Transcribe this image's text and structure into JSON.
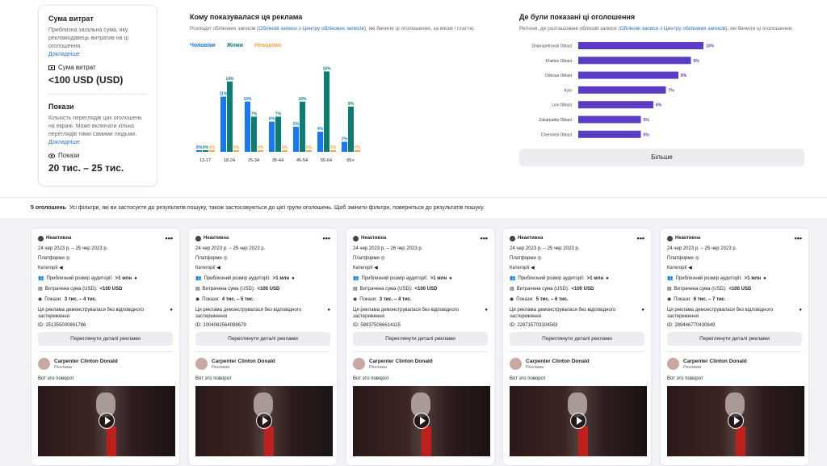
{
  "spend": {
    "title": "Сума витрат",
    "desc": "Приблизна загальна сума, яку рекламодавець витратив на ці оголошення.",
    "link": "Докладніше",
    "label": "Сума витрат",
    "value": "<100 USD (USD)"
  },
  "impressions": {
    "title": "Покази",
    "desc": "Кількість переглядів цих оголошень на екрані. Може включати кілька переглядів тими самими людьми.",
    "link": "Докладніше",
    "label": "Покази",
    "value": "20 тис. – 25 тис."
  },
  "audience": {
    "title": "Кому показувалася ця реклама",
    "sub_before": "Розподіл облікових записів (",
    "sub_link": "Облікові записи з Центру облікових записів",
    "sub_after": "), які бачили ці оголошення, за віком і статтю.",
    "legend": [
      {
        "name": "Чоловіки",
        "color": "#1877f2"
      },
      {
        "name": "Жінки",
        "color": "#0a7e73"
      },
      {
        "name": "Невідомо",
        "color": "#f7a54a"
      }
    ]
  },
  "chart_data": {
    "type": "bar",
    "categories": [
      "13-17",
      "18-24",
      "25-34",
      "35-44",
      "45-54",
      "55-64",
      "65+"
    ],
    "series": [
      {
        "name": "Чоловіки",
        "values": [
          0,
          11,
          10,
          6,
          5,
          4,
          2
        ]
      },
      {
        "name": "Жінки",
        "values": [
          0,
          14,
          7,
          7,
          10,
          16,
          9
        ]
      },
      {
        "name": "Невідомо",
        "values": [
          0,
          0,
          0,
          0,
          0,
          0,
          0
        ]
      }
    ],
    "labels": [
      [
        "0%",
        "11%",
        "10%",
        "6%",
        "5%",
        "4%",
        "2%"
      ],
      [
        "0%",
        "14%",
        "7%",
        "7%",
        "10%",
        "16%",
        "9%"
      ],
      [
        "0%",
        "0%",
        "0%",
        "0%",
        "0%",
        "0%",
        "0%"
      ]
    ],
    "ylim": [
      0,
      18
    ]
  },
  "regions": {
    "title": "Де були показані ці оголошення",
    "sub_before": "Регіони, де розташовані облікові записи (",
    "sub_link": "Облікові записи з Центру облікових записів",
    "sub_after": "), які бачили ці оголошення.",
    "items": [
      {
        "name": "Dnipropetrovsk Oblast",
        "value": 10,
        "label": "10%"
      },
      {
        "name": "Kharkiv Oblast",
        "value": 9,
        "label": "9%"
      },
      {
        "name": "Odessa Oblast",
        "value": 8,
        "label": "8%"
      },
      {
        "name": "Kyiv",
        "value": 7,
        "label": "7%"
      },
      {
        "name": "Lviv Oblast",
        "value": 6,
        "label": "6%"
      },
      {
        "name": "Zakarpattia Oblast",
        "value": 5,
        "label": "5%"
      },
      {
        "name": "Chernivtsi Oblast",
        "value": 5,
        "label": "5%"
      }
    ],
    "bar_color": "#5b3cc4",
    "more": "Більше"
  },
  "summary": {
    "count": "5 оголошень",
    "text": "Усі фільтри, які ви застосуєте до результатів пошуку, також застосовуються до цієї групи оголошень. Щоб змінити фільтри, поверніться до результатів пошуку."
  },
  "ads": [
    {
      "status": "Неактивна",
      "dates": "24 чер 2023 р. – 25 чер 2023 р.",
      "platforms": "Платформи",
      "categories": "Категорії",
      "audience_label": "Приблизний розмір аудиторії:",
      "audience": ">1 млн",
      "spend_label": "Витрачена сума (USD):",
      "spend": "<100 USD",
      "impr_label": "Покази:",
      "impr": "3 тис. – 4 тис.",
      "demo": "Ця реклама демонструвалася без відповідного застереження",
      "id": "ID: 251355000861786",
      "btn": "Переглянути деталі реклами",
      "advertiser": "Carpenter Clinton Donald",
      "adv_sub": "Реклама",
      "text": "Вот это поворот"
    },
    {
      "status": "Неактивна",
      "dates": "24 чер 2023 р. – 25 чер 2023 р.",
      "platforms": "Платформи",
      "categories": "Категорії",
      "audience_label": "Приблизний розмір аудиторії:",
      "audience": ">1 млн",
      "spend_label": "Витрачена сума (USD):",
      "spend": "<100 USD",
      "impr_label": "Покази:",
      "impr": "4 тис. – 5 тис.",
      "demo": "Ця реклама демонструвалася без відповідного застереження",
      "id": "ID: 1004082564098679",
      "btn": "Переглянути деталі реклами",
      "advertiser": "Carpenter Clinton Donald",
      "adv_sub": "Реклама",
      "text": "Вот это поворот"
    },
    {
      "status": "Неактивна",
      "dates": "24 чер 2023 р. – 26 чер 2023 р.",
      "platforms": "Платформи",
      "categories": "Категорії",
      "audience_label": "Приблизний розмір аудиторії:",
      "audience": ">1 млн",
      "spend_label": "Витрачена сума (USD):",
      "spend": "<100 USD",
      "impr_label": "Покази:",
      "impr": "3 тис. – 4 тис.",
      "demo": "Ця реклама демонструвалася без відповідного застереження",
      "id": "ID: 589375066614115",
      "btn": "Переглянути деталі реклами",
      "advertiser": "Carpenter Clinton Donald",
      "adv_sub": "Реклама",
      "text": "Вот это поворот"
    },
    {
      "status": "Неактивна",
      "dates": "24 чер 2023 р. – 25 чер 2023 р.",
      "platforms": "Платформи",
      "categories": "Категорії",
      "audience_label": "Приблизний розмір аудиторії:",
      "audience": ">1 млн",
      "spend_label": "Витрачена сума (USD):",
      "spend": "<100 USD",
      "impr_label": "Покази:",
      "impr": "5 тис. – 6 тис.",
      "demo": "Ця реклама демонструвалася без відповідного застереження",
      "id": "ID: 228715703304563",
      "btn": "Переглянути деталі реклами",
      "advertiser": "Carpenter Clinton Donald",
      "adv_sub": "Реклама",
      "text": "Вот это поворот"
    },
    {
      "status": "Неактивна",
      "dates": "24 чер 2023 р. – 25 чер 2023 р.",
      "platforms": "Платформи",
      "categories": "Категорії",
      "audience_label": "Приблизний розмір аудиторії:",
      "audience": ">1 млн",
      "spend_label": "Витрачена сума (USD):",
      "spend": "<100 USD",
      "impr_label": "Покази:",
      "impr": "6 тис. – 7 тис.",
      "demo": "Ця реклама демонструвалася без відповідного застереження",
      "id": "ID: 289446770430849",
      "btn": "Переглянути деталі реклами",
      "advertiser": "Carpenter Clinton Donald",
      "adv_sub": "Реклама",
      "text": "Вот это поворот"
    }
  ]
}
